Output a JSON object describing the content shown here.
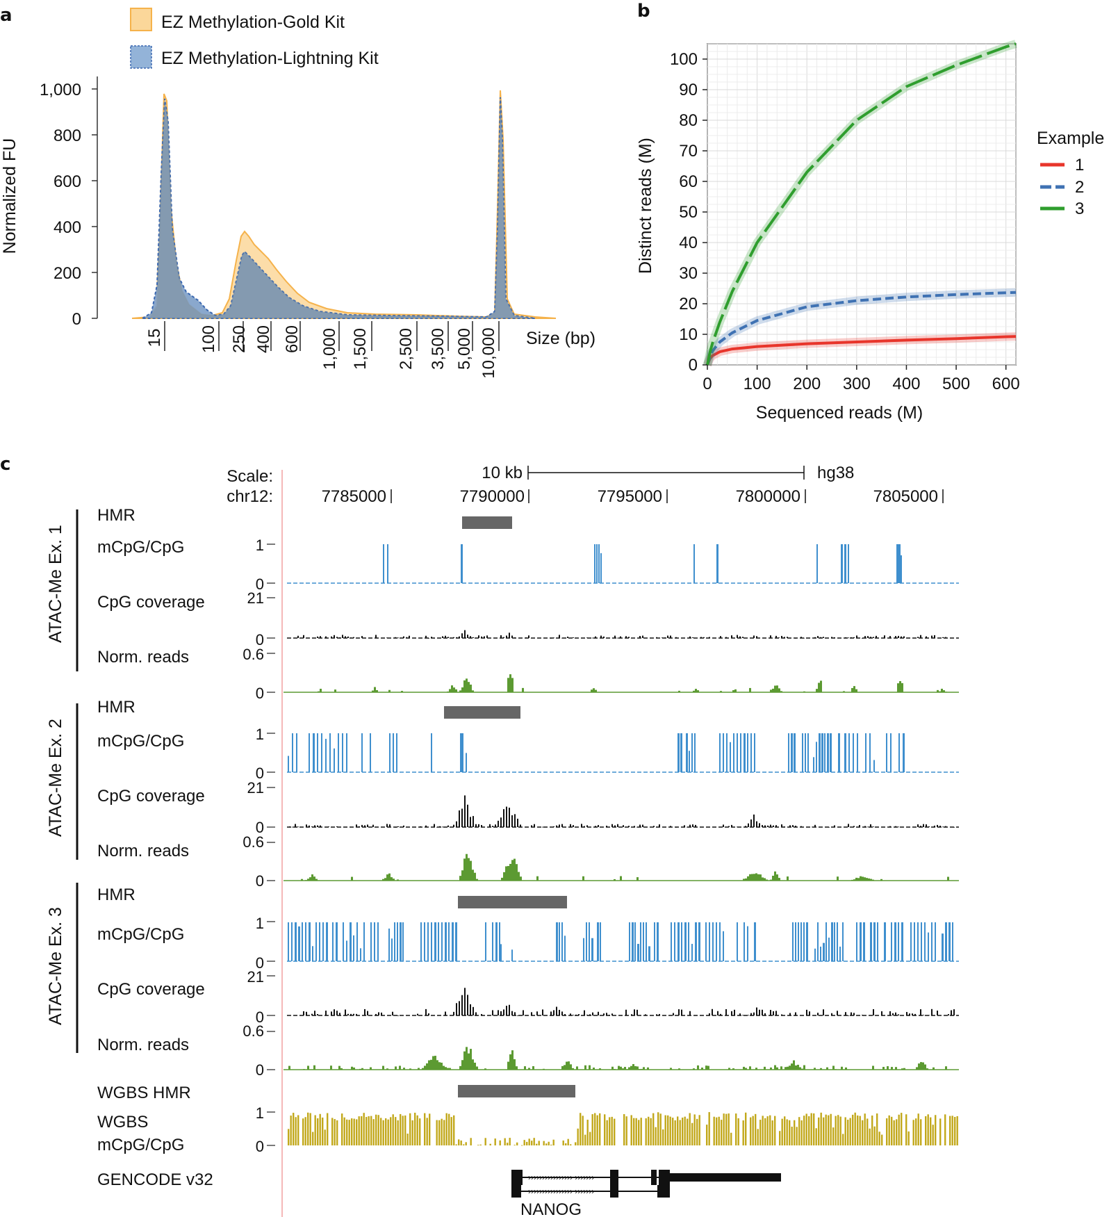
{
  "colors": {
    "gold_fill": "#fbd79a",
    "gold_line": "#f5b24b",
    "lightning_fill": "#7d9fc8",
    "lightning_line": "#3a67b0",
    "overlap": "#7f919f",
    "ex1": "#e8352b",
    "ex2": "#3f72b3",
    "ex3": "#2f9e2e",
    "meth": "#3f8fce",
    "cov": "#111111",
    "reads": "#5c9a32",
    "wgbs": "#c2a81b",
    "hmr": "#666666",
    "pinkline": "#f2a1a1"
  },
  "panel_a": {
    "label": "a",
    "legend": [
      "EZ Methylation-Gold Kit",
      "EZ Methylation-Lightning Kit"
    ],
    "ylabel": "Normalized FU",
    "xlabel": "Size (bp)",
    "yticks": [
      "0",
      "200",
      "400",
      "600",
      "800",
      "1,000"
    ],
    "xticks": [
      "15",
      "100",
      "250",
      "400",
      "600",
      "1,000",
      "1,500",
      "2,500",
      "3,500",
      "5,000",
      "10,000"
    ]
  },
  "panel_b": {
    "label": "b",
    "xlabel": "Sequenced reads (M)",
    "ylabel": "Distinct reads (M)",
    "legend_title": "Example",
    "legend": [
      "1",
      "2",
      "3"
    ],
    "xticks": [
      "0",
      "100",
      "200",
      "300",
      "400",
      "500",
      "600"
    ],
    "yticks": [
      "0",
      "10",
      "20",
      "30",
      "40",
      "50",
      "60",
      "70",
      "80",
      "90",
      "100"
    ]
  },
  "panel_c": {
    "label": "c",
    "scale_label": "Scale:",
    "scale_bar": "10 kb",
    "assembly": "hg38",
    "chrom": "chr12:",
    "coords": [
      "7785000",
      "7790000",
      "7795000",
      "7800000",
      "7805000"
    ],
    "groups": [
      "ATAC-Me Ex. 1",
      "ATAC-Me Ex. 2",
      "ATAC-Me Ex. 3"
    ],
    "track_names": {
      "hmr": "HMR",
      "meth": "mCpG/CpG",
      "cov": "CpG coverage",
      "reads": "Norm. reads"
    },
    "scales": {
      "meth_max": "1",
      "cov_max": "21",
      "reads_max": "0.6",
      "zero": "0"
    },
    "wgbs_hmr": "WGBS HMR",
    "wgbs_meth_1": "WGBS",
    "wgbs_meth_2": "mCpG/CpG",
    "gencode": "GENCODE v32",
    "gene": "NANOG"
  },
  "chart_data": [
    {
      "type": "area",
      "title": "a",
      "xlabel": "Size (bp)",
      "ylabel": "Normalized FU",
      "ylim": [
        0,
        1000
      ],
      "categories": [
        "15",
        "100",
        "250",
        "400",
        "600",
        "1,000",
        "1,500",
        "2,500",
        "3,500",
        "5,000",
        "10,000"
      ],
      "series": [
        {
          "name": "EZ Methylation-Gold Kit",
          "x": [
            0,
            4,
            6,
            8,
            12,
            16,
            22,
            28,
            32,
            36,
            40,
            44,
            48,
            52,
            56,
            60,
            64,
            68,
            72,
            78,
            84,
            90,
            96,
            100
          ],
          "values": [
            0,
            0,
            960,
            200,
            20,
            10,
            0,
            380,
            320,
            220,
            120,
            60,
            40,
            25,
            20,
            20,
            18,
            15,
            20,
            20,
            30,
            990,
            20,
            0
          ]
        },
        {
          "name": "EZ Methylation-Lightning Kit",
          "x": [
            0,
            4,
            6,
            8,
            12,
            16,
            22,
            28,
            32,
            36,
            40,
            44,
            48,
            52,
            56,
            60,
            64,
            68,
            72,
            78,
            84,
            90,
            96,
            100
          ],
          "values": [
            0,
            0,
            960,
            120,
            80,
            10,
            0,
            290,
            220,
            150,
            60,
            25,
            15,
            10,
            8,
            8,
            8,
            8,
            8,
            8,
            10,
            940,
            10,
            0
          ]
        }
      ]
    },
    {
      "type": "line",
      "title": "b",
      "xlabel": "Sequenced reads (M)",
      "ylabel": "Distinct reads (M)",
      "xlim": [
        0,
        620
      ],
      "ylim": [
        0,
        105
      ],
      "legend_title": "Example",
      "series": [
        {
          "name": "1",
          "x": [
            0,
            5,
            10,
            25,
            50,
            100,
            200,
            300,
            400,
            500,
            600,
            620
          ],
          "values": [
            0,
            2,
            3,
            4.3,
            5.2,
            6.0,
            6.9,
            7.5,
            8.1,
            8.6,
            9.2,
            9.3
          ]
        },
        {
          "name": "2",
          "x": [
            0,
            5,
            10,
            25,
            50,
            100,
            200,
            300,
            400,
            500,
            600,
            620
          ],
          "values": [
            0,
            2.5,
            4.5,
            7.5,
            10.5,
            14.5,
            19,
            21,
            22.2,
            23,
            23.6,
            23.7
          ]
        },
        {
          "name": "3",
          "x": [
            0,
            5,
            10,
            25,
            50,
            100,
            200,
            300,
            400,
            500,
            600,
            620
          ],
          "values": [
            0,
            4,
            7,
            14,
            24,
            40,
            63,
            80,
            91,
            98,
            104,
            105
          ]
        }
      ]
    }
  ]
}
